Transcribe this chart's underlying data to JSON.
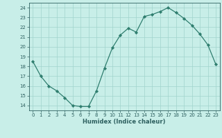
{
  "xlabel": "Humidex (Indice chaleur)",
  "ylabel": "",
  "x": [
    0,
    1,
    2,
    3,
    4,
    5,
    6,
    7,
    8,
    9,
    10,
    11,
    12,
    13,
    14,
    15,
    16,
    17,
    18,
    19,
    20,
    21,
    22,
    23
  ],
  "y": [
    18.5,
    17.0,
    16.0,
    15.5,
    14.8,
    14.0,
    13.9,
    13.9,
    15.5,
    17.8,
    19.9,
    21.2,
    21.9,
    21.5,
    23.1,
    23.3,
    23.6,
    24.0,
    23.5,
    22.9,
    22.2,
    21.3,
    20.2,
    18.2
  ],
  "line_color": "#2e7d6e",
  "marker": "D",
  "marker_size": 2.2,
  "bg_color": "#c8eee8",
  "grid_color": "#a0d4cc",
  "tick_color": "#2e6060",
  "label_color": "#2e6060",
  "xlim": [
    -0.5,
    23.5
  ],
  "ylim": [
    13.5,
    24.5
  ],
  "yticks": [
    14,
    15,
    16,
    17,
    18,
    19,
    20,
    21,
    22,
    23,
    24
  ],
  "xticks": [
    0,
    1,
    2,
    3,
    4,
    5,
    6,
    7,
    8,
    9,
    10,
    11,
    12,
    13,
    14,
    15,
    16,
    17,
    18,
    19,
    20,
    21,
    22,
    23
  ],
  "tick_fontsize": 5.0,
  "xlabel_fontsize": 6.0
}
